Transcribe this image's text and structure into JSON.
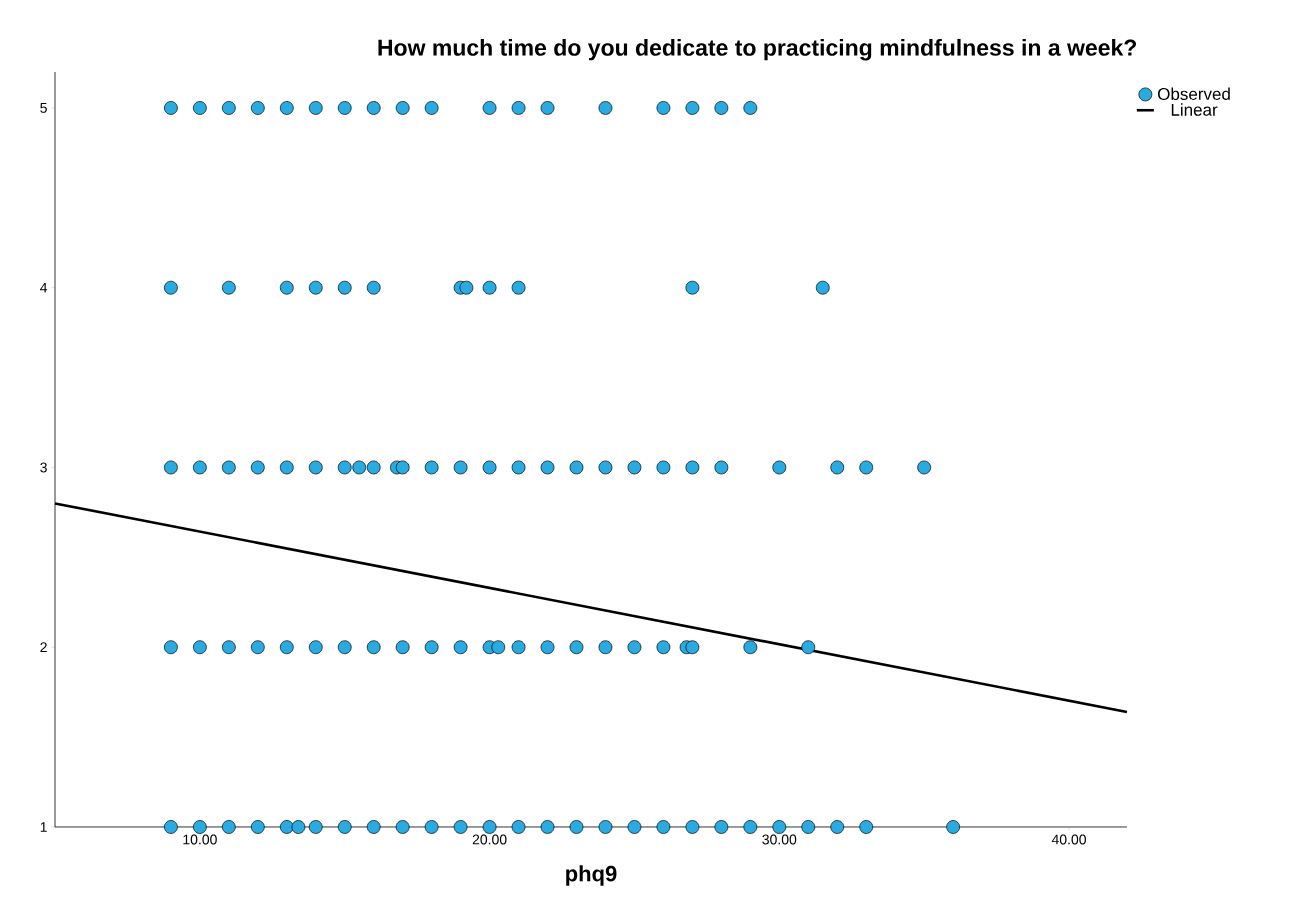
{
  "chart_data": {
    "type": "scatter",
    "title": "How much time do you dedicate to practicing mindfulness in a week?",
    "xlabel": "phq9",
    "xlim": [
      5,
      42
    ],
    "ylim": [
      1,
      5.2
    ],
    "xticks": [
      {
        "value": 10,
        "label": "10.00"
      },
      {
        "value": 20,
        "label": "20.00"
      },
      {
        "value": 30,
        "label": "30.00"
      },
      {
        "value": 40,
        "label": "40.00"
      }
    ],
    "yticks": [
      1,
      2,
      3,
      4,
      5
    ],
    "grid": false,
    "legend": "top right",
    "series": [
      {
        "name": "Observed",
        "marker": "circle",
        "color": "#29abe2",
        "x": [
          9,
          10,
          11,
          12,
          13,
          14,
          15,
          16,
          17,
          18,
          20,
          21,
          22,
          24,
          26,
          27,
          28,
          29,
          9,
          11,
          13,
          14,
          15,
          16,
          19,
          19.2,
          20,
          21,
          27,
          31.5,
          9,
          10,
          11,
          12,
          13,
          14,
          15,
          15.5,
          16,
          16.8,
          17,
          18,
          19,
          20,
          21,
          22,
          23,
          24,
          25,
          26,
          27,
          28,
          30,
          32,
          33,
          35,
          9,
          10,
          11,
          12,
          13,
          14,
          15,
          16,
          17,
          18,
          19,
          20,
          20.3,
          21,
          22,
          23,
          24,
          25,
          26,
          26.8,
          27,
          29,
          31,
          9,
          10,
          11,
          12,
          13,
          13.4,
          14,
          15,
          16,
          17,
          18,
          19,
          20,
          21,
          22,
          23,
          24,
          25,
          26,
          27,
          28,
          29,
          30,
          31,
          32,
          33,
          36
        ],
        "values": [
          5,
          5,
          5,
          5,
          5,
          5,
          5,
          5,
          5,
          5,
          5,
          5,
          5,
          5,
          5,
          5,
          5,
          5,
          4,
          4,
          4,
          4,
          4,
          4,
          4,
          4,
          4,
          4,
          4,
          4,
          3,
          3,
          3,
          3,
          3,
          3,
          3,
          3,
          3,
          3,
          3,
          3,
          3,
          3,
          3,
          3,
          3,
          3,
          3,
          3,
          3,
          3,
          3,
          3,
          3,
          3,
          2,
          2,
          2,
          2,
          2,
          2,
          2,
          2,
          2,
          2,
          2,
          2,
          2,
          2,
          2,
          2,
          2,
          2,
          2,
          2,
          2,
          2,
          2,
          1,
          1,
          1,
          1,
          1,
          1,
          1,
          1,
          1,
          1,
          1,
          1,
          1,
          1,
          1,
          1,
          1,
          1,
          1,
          1,
          1,
          1,
          1,
          1,
          1,
          1,
          1
        ]
      },
      {
        "name": "Linear",
        "type": "line",
        "marker": "none",
        "color": "#000000",
        "x": [
          5,
          42
        ],
        "values": [
          2.8,
          1.64
        ]
      }
    ]
  }
}
